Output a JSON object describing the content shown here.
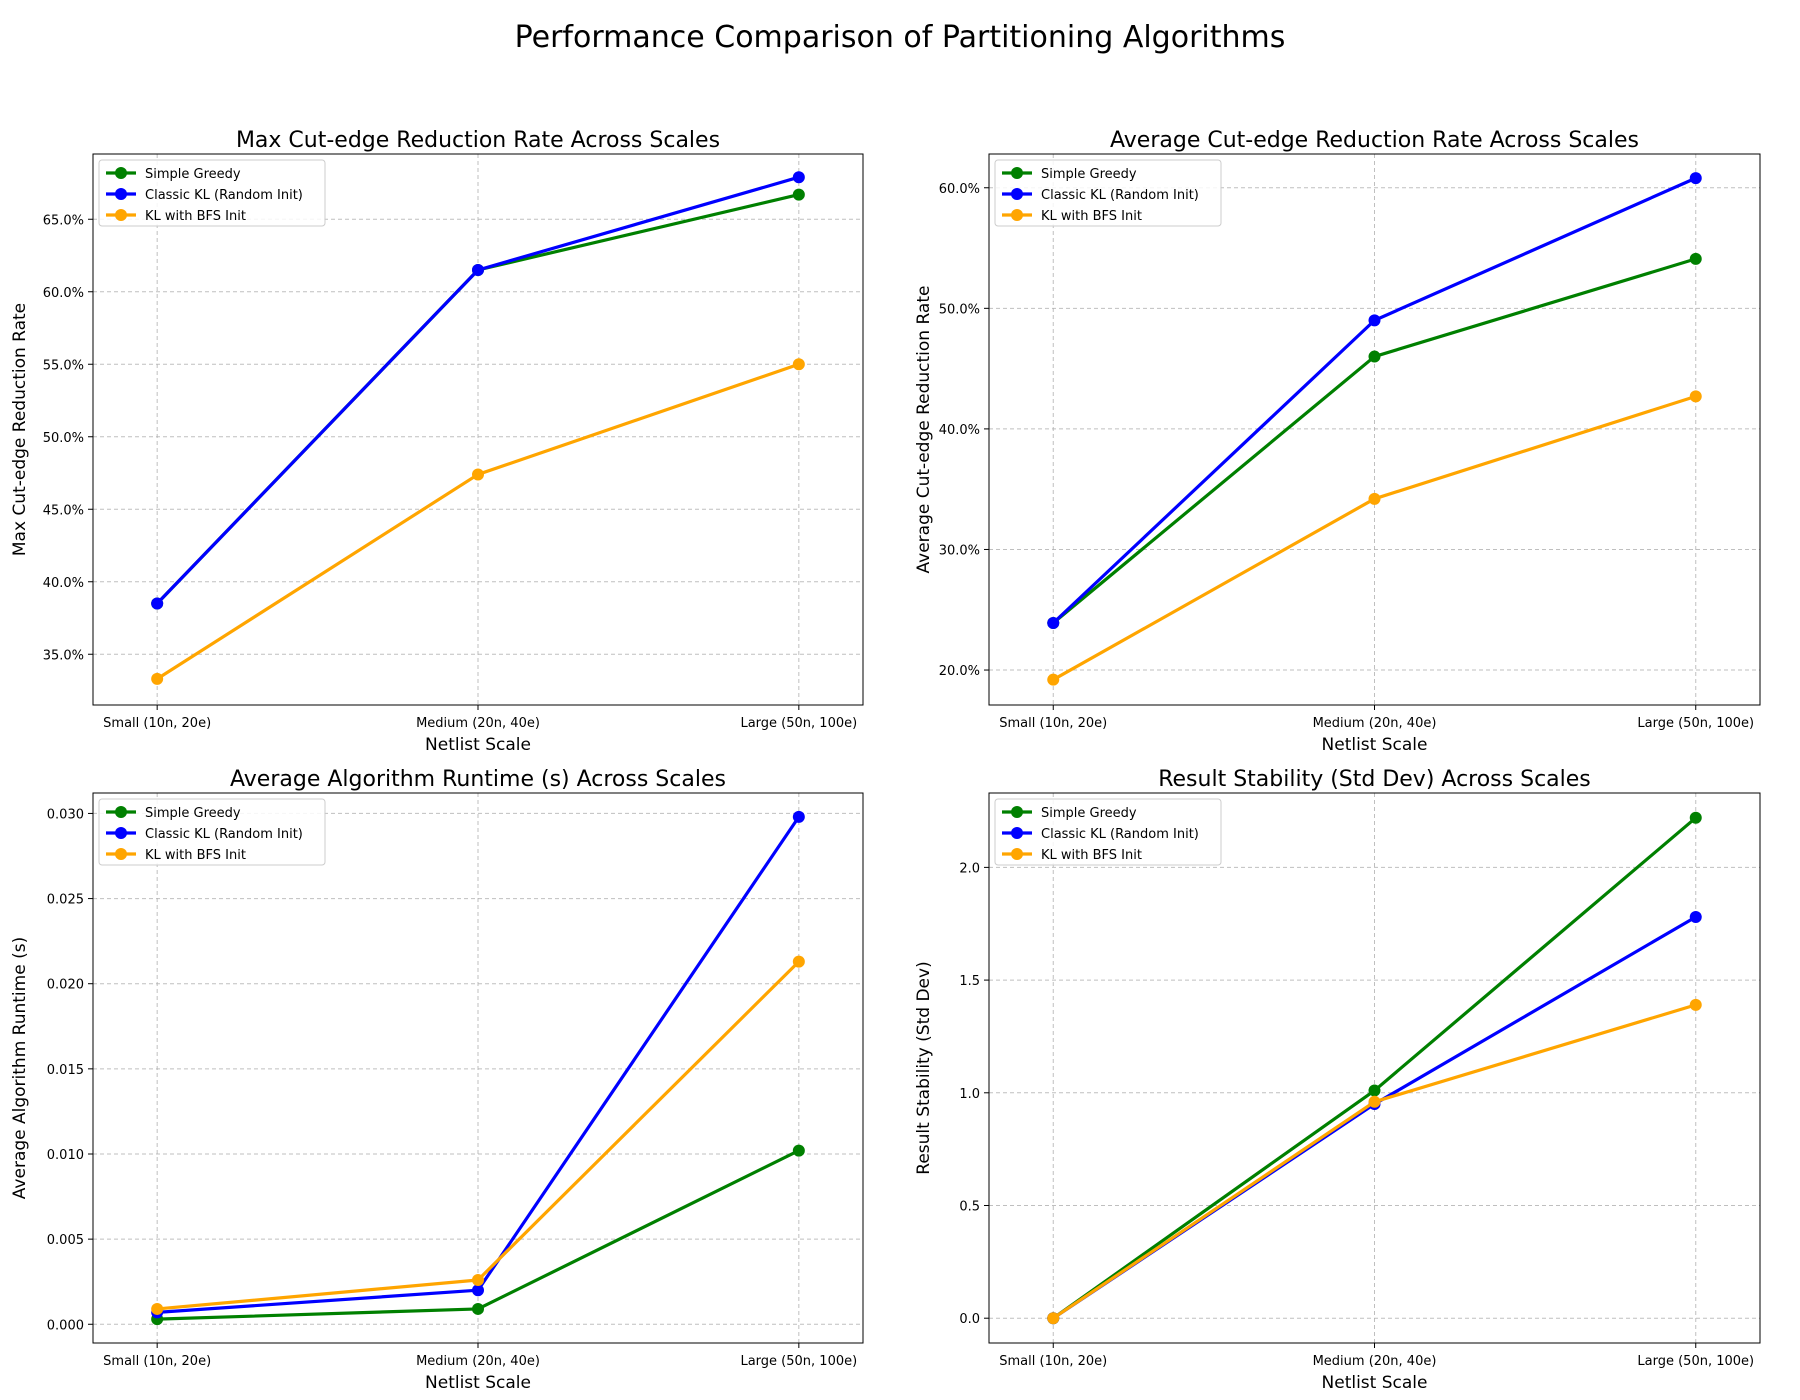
{
  "figure_title": "Performance Comparison of Partitioning Algorithms",
  "colors": {
    "Simple Greedy": "#008000",
    "Classic KL (Random Init)": "#0000ff",
    "KL with BFS Init": "#ffa500"
  },
  "chart_data": [
    {
      "type": "line",
      "title": "Max Cut-edge Reduction Rate Across Scales",
      "xlabel": "Netlist Scale",
      "ylabel": "Max Cut-edge Reduction Rate",
      "categories": [
        "Small (10n, 20e)",
        "Medium (20n, 40e)",
        "Large (50n, 100e)"
      ],
      "ylim": [
        31.5,
        69.5
      ],
      "yticks": [
        35,
        40,
        45,
        50,
        55,
        60,
        65
      ],
      "ytick_format": "percent1",
      "grid": true,
      "legend_position": "upper-left",
      "series": [
        {
          "name": "Simple Greedy",
          "values": [
            38.5,
            61.5,
            66.7
          ]
        },
        {
          "name": "Classic KL (Random Init)",
          "values": [
            38.5,
            61.5,
            67.9
          ]
        },
        {
          "name": "KL with BFS Init",
          "values": [
            33.3,
            47.4,
            55.0
          ]
        }
      ]
    },
    {
      "type": "line",
      "title": "Average Cut-edge Reduction Rate Across Scales",
      "xlabel": "Netlist Scale",
      "ylabel": "Average Cut-edge Reduction Rate",
      "categories": [
        "Small (10n, 20e)",
        "Medium (20n, 40e)",
        "Large (50n, 100e)"
      ],
      "ylim": [
        17.1,
        62.8
      ],
      "yticks": [
        20,
        30,
        40,
        50,
        60
      ],
      "ytick_format": "percent1",
      "grid": true,
      "legend_position": "upper-left",
      "series": [
        {
          "name": "Simple Greedy",
          "values": [
            23.9,
            46.0,
            54.1
          ]
        },
        {
          "name": "Classic KL (Random Init)",
          "values": [
            23.9,
            49.0,
            60.8
          ]
        },
        {
          "name": "KL with BFS Init",
          "values": [
            19.2,
            34.2,
            42.7
          ]
        }
      ]
    },
    {
      "type": "line",
      "title": "Average Algorithm Runtime (s) Across Scales",
      "xlabel": "Netlist Scale",
      "ylabel": "Average Algorithm Runtime (s)",
      "categories": [
        "Small (10n, 20e)",
        "Medium (20n, 40e)",
        "Large (50n, 100e)"
      ],
      "ylim": [
        -0.0011,
        0.0312
      ],
      "yticks": [
        0.0,
        0.005,
        0.01,
        0.015,
        0.02,
        0.025,
        0.03
      ],
      "ytick_format": "fixed3",
      "grid": true,
      "legend_position": "upper-left",
      "series": [
        {
          "name": "Simple Greedy",
          "values": [
            0.0003,
            0.0009,
            0.0102
          ]
        },
        {
          "name": "Classic KL (Random Init)",
          "values": [
            0.0007,
            0.002,
            0.0298
          ]
        },
        {
          "name": "KL with BFS Init",
          "values": [
            0.0009,
            0.0026,
            0.0213
          ]
        }
      ]
    },
    {
      "type": "line",
      "title": "Result Stability (Std Dev) Across Scales",
      "xlabel": "Netlist Scale",
      "ylabel": "Result Stability (Std Dev)",
      "categories": [
        "Small (10n, 20e)",
        "Medium (20n, 40e)",
        "Large (50n, 100e)"
      ],
      "ylim": [
        -0.11,
        2.33
      ],
      "yticks": [
        0.0,
        0.5,
        1.0,
        1.5,
        2.0
      ],
      "ytick_format": "fixed1",
      "grid": true,
      "legend_position": "upper-left",
      "series": [
        {
          "name": "Simple Greedy",
          "values": [
            0.0,
            1.01,
            2.22
          ]
        },
        {
          "name": "Classic KL (Random Init)",
          "values": [
            0.0,
            0.95,
            1.78
          ]
        },
        {
          "name": "KL with BFS Init",
          "values": [
            0.0,
            0.96,
            1.39
          ]
        }
      ]
    }
  ]
}
